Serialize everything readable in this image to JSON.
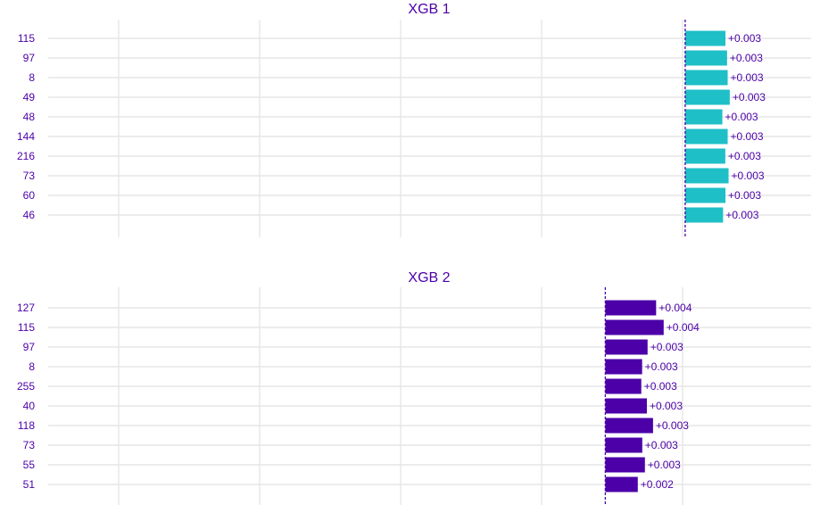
{
  "chart_data": [
    {
      "type": "bar",
      "orientation": "horizontal",
      "title": "XGB 1",
      "color": "#1fbfc7",
      "categories": [
        "115",
        "97",
        "8",
        "49",
        "48",
        "144",
        "216",
        "73",
        "60",
        "46"
      ],
      "values": [
        0.00272,
        0.00283,
        0.00287,
        0.00301,
        0.00251,
        0.00287,
        0.00271,
        0.00293,
        0.00272,
        0.00256
      ],
      "labels": [
        "+0.003",
        "+0.003",
        "+0.003",
        "+0.003",
        "+0.003",
        "+0.003",
        "+0.003",
        "+0.003",
        "+0.003",
        "+0.003"
      ],
      "baseline": 0,
      "xlim": [
        -0.043,
        0.0085
      ],
      "grid": true
    },
    {
      "type": "bar",
      "orientation": "horizontal",
      "title": "XGB 2",
      "color": "#4b00a8",
      "categories": [
        "127",
        "115",
        "97",
        "8",
        "255",
        "40",
        "118",
        "73",
        "55",
        "51"
      ],
      "values": [
        0.00363,
        0.00417,
        0.00302,
        0.00263,
        0.00257,
        0.00297,
        0.00341,
        0.00264,
        0.00283,
        0.00232
      ],
      "labels": [
        "+0.004",
        "+0.004",
        "+0.003",
        "+0.003",
        "+0.003",
        "+0.003",
        "+0.003",
        "+0.003",
        "+0.003",
        "+0.002"
      ],
      "baseline": 0,
      "xlim": [
        -0.0398,
        0.0147
      ],
      "grid": true
    }
  ],
  "colors": {
    "text": "#4b00a8",
    "grid": "#e6e6e6",
    "baseline": "#4b00a8"
  }
}
